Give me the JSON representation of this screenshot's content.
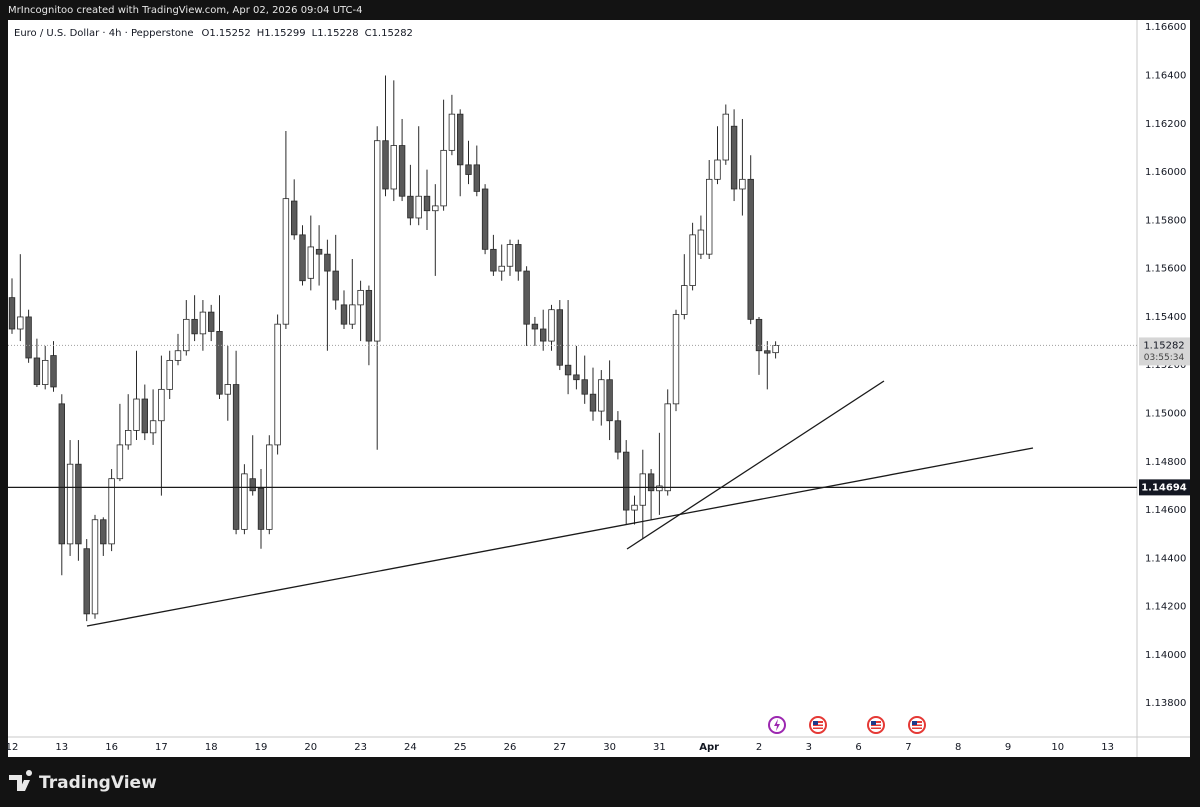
{
  "attribution": "MrIncognitoo created with TradingView.com, Apr 02, 2026 09:04 UTC-4",
  "brand": "TradingView",
  "chart_data": {
    "type": "candlestick",
    "title": "Euro / U.S. Dollar · 4h · Pepperstone",
    "ohlc_labels": [
      "O",
      "H",
      "L",
      "C"
    ],
    "countdown": "03:55:34",
    "horizontal_line": 1.14694,
    "up_color": "#ffffff",
    "down_color": "#5a5a5a",
    "wick_color": "#2a2a2a",
    "ylim": [
      1.1366,
      1.1663
    ],
    "yticks": [
      {
        "value": 1.166,
        "label": "1.16600"
      },
      {
        "value": 1.164,
        "label": "1.16400"
      },
      {
        "value": 1.162,
        "label": "1.16200"
      },
      {
        "value": 1.16,
        "label": "1.16000"
      },
      {
        "value": 1.158,
        "label": "1.15800"
      },
      {
        "value": 1.156,
        "label": "1.15600"
      },
      {
        "value": 1.154,
        "label": "1.15400"
      },
      {
        "value": 1.152,
        "label": "1.15200"
      },
      {
        "value": 1.15,
        "label": "1.15000"
      },
      {
        "value": 1.148,
        "label": "1.14800"
      },
      {
        "value": 1.146,
        "label": "1.14600"
      },
      {
        "value": 1.144,
        "label": "1.14400"
      },
      {
        "value": 1.142,
        "label": "1.14200"
      },
      {
        "value": 1.14,
        "label": "1.14000"
      },
      {
        "value": 1.138,
        "label": "1.13800"
      }
    ],
    "grid": false,
    "categories": [
      "12",
      null,
      null,
      null,
      null,
      null,
      "13",
      null,
      null,
      null,
      null,
      null,
      "16",
      null,
      null,
      null,
      null,
      null,
      "17",
      null,
      null,
      null,
      null,
      null,
      "18",
      null,
      null,
      null,
      null,
      null,
      "19",
      null,
      null,
      null,
      null,
      null,
      "20",
      null,
      null,
      null,
      null,
      null,
      "23",
      null,
      null,
      null,
      null,
      null,
      "24",
      null,
      null,
      null,
      null,
      null,
      "25",
      null,
      null,
      null,
      null,
      null,
      "26",
      null,
      null,
      null,
      null,
      null,
      "27",
      null,
      null,
      null,
      null,
      null,
      "30",
      null,
      null,
      null,
      null,
      null,
      "31",
      null,
      null,
      null,
      null,
      null,
      "Apr",
      null,
      null,
      null,
      null,
      null,
      "2",
      null,
      null,
      null,
      null,
      null,
      "3",
      null,
      null,
      null,
      null,
      null,
      "6",
      null,
      null,
      null,
      null,
      null,
      "7",
      null,
      null,
      null,
      null,
      null,
      "8",
      null,
      null,
      null,
      null,
      null,
      "9",
      null,
      null,
      null,
      null,
      null,
      "10",
      null,
      null,
      null,
      null,
      null,
      "13",
      null,
      null,
      null
    ],
    "open": [
      1.1548,
      1.1535,
      1.154,
      1.1523,
      1.1512,
      1.1524,
      1.1504,
      1.1446,
      1.1479,
      1.1444,
      1.1417,
      1.1456,
      1.1446,
      1.1473,
      1.1487,
      1.1493,
      1.1506,
      1.1492,
      1.1497,
      1.151,
      1.1522,
      1.1526,
      1.1539,
      1.1533,
      1.1542,
      1.1534,
      1.1508,
      1.1512,
      1.1452,
      1.1473,
      1.1469,
      1.1452,
      1.1487,
      1.1537,
      1.1588,
      1.1574,
      1.1556,
      1.1568,
      1.1566,
      1.1559,
      1.1545,
      1.1537,
      1.1545,
      1.1551,
      1.153,
      1.1613,
      1.1593,
      1.1611,
      1.159,
      1.1581,
      1.159,
      1.1584,
      1.1586,
      1.1609,
      1.1624,
      1.1603,
      1.1603,
      1.1593,
      1.1568,
      1.1559,
      1.1561,
      1.157,
      1.1559,
      1.1537,
      1.1535,
      1.153,
      1.1543,
      1.152,
      1.1516,
      1.1514,
      1.1508,
      1.1501,
      1.1514,
      1.1497,
      1.1484,
      1.146,
      1.1462,
      1.1475,
      1.1468,
      1.1468,
      1.1504,
      1.1541,
      1.1553,
      1.1566,
      1.1566,
      1.1597,
      1.1605,
      1.1619,
      1.1593,
      1.1597,
      1.1539,
      1.1526,
      1.15252,
      null,
      null,
      null,
      null,
      null,
      null,
      null,
      null,
      null,
      null,
      null,
      null,
      null,
      null,
      null,
      null,
      null,
      null,
      null,
      null,
      null,
      null,
      null,
      null,
      null,
      null,
      null,
      null,
      null,
      null,
      null,
      null,
      null,
      null,
      null,
      null,
      null,
      null,
      null,
      null,
      null,
      null,
      null
    ],
    "high": [
      1.1556,
      1.1566,
      1.1543,
      1.1531,
      1.1528,
      1.153,
      1.1508,
      1.1489,
      1.1489,
      1.1448,
      1.1458,
      1.1457,
      1.1477,
      1.1504,
      1.1508,
      1.1526,
      1.1512,
      1.151,
      1.1524,
      1.1526,
      1.1533,
      1.1547,
      1.1549,
      1.1547,
      1.1545,
      1.1549,
      1.1528,
      1.1526,
      1.1479,
      1.1491,
      1.1477,
      1.1491,
      1.1541,
      1.1617,
      1.1597,
      1.1578,
      1.1582,
      1.1578,
      1.1572,
      1.1574,
      1.1551,
      1.1564,
      1.1555,
      1.1553,
      1.1619,
      1.164,
      1.1638,
      1.1622,
      1.1603,
      1.1619,
      1.1601,
      1.1595,
      1.163,
      1.1632,
      1.1626,
      1.1613,
      1.1611,
      1.1595,
      1.1574,
      1.157,
      1.1572,
      1.1572,
      1.1561,
      1.154,
      1.1543,
      1.1545,
      1.1547,
      1.1547,
      1.1528,
      1.1524,
      1.1519,
      1.1518,
      1.1522,
      1.1501,
      1.1489,
      1.1466,
      1.1485,
      1.1477,
      1.1492,
      1.151,
      1.1543,
      1.1566,
      1.1579,
      1.1582,
      1.1605,
      1.1619,
      1.1628,
      1.1626,
      1.1622,
      1.1607,
      1.154,
      1.153,
      1.15299,
      null,
      null,
      null,
      null,
      null,
      null,
      null,
      null,
      null,
      null,
      null,
      null,
      null,
      null,
      null,
      null,
      null,
      null,
      null,
      null,
      null,
      null,
      null,
      null,
      null,
      null,
      null,
      null,
      null,
      null,
      null,
      null,
      null,
      null,
      null,
      null,
      null,
      null,
      null,
      null,
      null,
      null,
      null
    ],
    "low": [
      1.1533,
      1.153,
      1.1521,
      1.1511,
      1.151,
      1.1509,
      1.1433,
      1.1441,
      1.1439,
      1.1414,
      1.1415,
      1.1441,
      1.1443,
      1.1472,
      1.1485,
      1.1489,
      1.1489,
      1.1487,
      1.1466,
      1.1506,
      1.152,
      1.1524,
      1.153,
      1.1526,
      1.153,
      1.1506,
      1.1497,
      1.145,
      1.145,
      1.1466,
      1.1444,
      1.145,
      1.1483,
      1.1535,
      1.1572,
      1.1553,
      1.1551,
      1.1553,
      1.1526,
      1.1543,
      1.1535,
      1.1535,
      1.153,
      1.152,
      1.1485,
      1.159,
      1.1588,
      1.1588,
      1.1578,
      1.1578,
      1.1576,
      1.1557,
      1.1584,
      1.1607,
      1.159,
      1.1595,
      1.159,
      1.1566,
      1.1557,
      1.1555,
      1.1557,
      1.1555,
      1.1528,
      1.1528,
      1.1526,
      1.1526,
      1.1518,
      1.1508,
      1.151,
      1.1504,
      1.1497,
      1.1495,
      1.1489,
      1.1481,
      1.1454,
      1.1454,
      1.1448,
      1.1456,
      1.1458,
      1.1466,
      1.1501,
      1.1539,
      1.1551,
      1.1564,
      1.1564,
      1.1595,
      1.1603,
      1.1588,
      1.1582,
      1.1537,
      1.1516,
      1.151,
      1.15228,
      null,
      null,
      null,
      null,
      null,
      null,
      null,
      null,
      null,
      null,
      null,
      null,
      null,
      null,
      null,
      null,
      null,
      null,
      null,
      null,
      null,
      null,
      null,
      null,
      null,
      null,
      null,
      null,
      null,
      null,
      null,
      null,
      null,
      null,
      null,
      null,
      null,
      null,
      null,
      null,
      null,
      null,
      null
    ],
    "close": [
      1.1535,
      1.154,
      1.1523,
      1.1512,
      1.1522,
      1.1511,
      1.1446,
      1.1479,
      1.1446,
      1.1417,
      1.1456,
      1.1446,
      1.1473,
      1.1487,
      1.1493,
      1.1506,
      1.1492,
      1.1497,
      1.151,
      1.1522,
      1.1526,
      1.1539,
      1.1533,
      1.1542,
      1.1534,
      1.1508,
      1.1512,
      1.1452,
      1.1475,
      1.1468,
      1.1452,
      1.1487,
      1.1537,
      1.1589,
      1.1574,
      1.1555,
      1.1569,
      1.1566,
      1.1559,
      1.1547,
      1.1537,
      1.1545,
      1.1551,
      1.153,
      1.1613,
      1.1593,
      1.1611,
      1.159,
      1.1581,
      1.159,
      1.1584,
      1.1586,
      1.1609,
      1.1624,
      1.1603,
      1.1599,
      1.1592,
      1.1568,
      1.1559,
      1.1561,
      1.157,
      1.1559,
      1.1537,
      1.1535,
      1.153,
      1.1543,
      1.152,
      1.1516,
      1.1514,
      1.1508,
      1.1501,
      1.1514,
      1.1497,
      1.1484,
      1.146,
      1.1462,
      1.1475,
      1.1468,
      1.147,
      1.1504,
      1.1541,
      1.1553,
      1.1574,
      1.1576,
      1.1597,
      1.1605,
      1.1624,
      1.1593,
      1.1597,
      1.1539,
      1.1526,
      1.1525,
      1.15282,
      null,
      null,
      null,
      null,
      null,
      null,
      null,
      null,
      null,
      null,
      null,
      null,
      null,
      null,
      null,
      null,
      null,
      null,
      null,
      null,
      null,
      null,
      null,
      null,
      null,
      null,
      null,
      null,
      null,
      null,
      null,
      null,
      null,
      null,
      null,
      null,
      null,
      null,
      null,
      null,
      null,
      null,
      null
    ]
  }
}
